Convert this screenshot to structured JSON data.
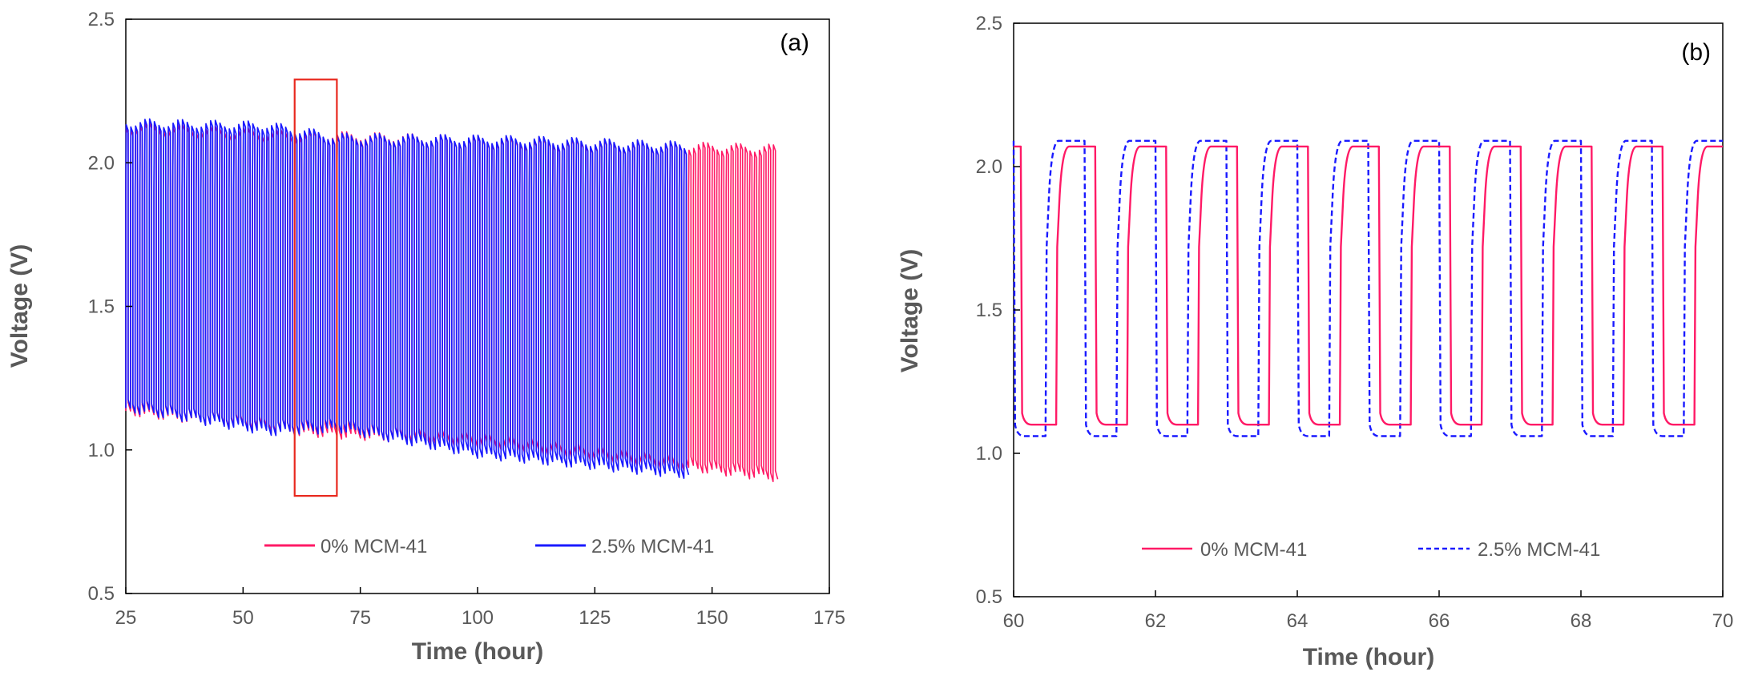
{
  "colors": {
    "pink": "#ff1a66",
    "blue": "#1a1aff",
    "blue_light": "#3b6cff",
    "highlight": "#e8281e",
    "axis": "#000000",
    "text": "#595959"
  },
  "chart_data": [
    {
      "type": "line",
      "panel_label": "(a)",
      "xlabel": "Time (hour)",
      "ylabel": "Voltage (V)",
      "xlim": [
        25,
        175
      ],
      "ylim": [
        0.5,
        2.5
      ],
      "xticks": [
        "25",
        "50",
        "75",
        "100",
        "125",
        "150",
        "175"
      ],
      "yticks": [
        "0.5",
        "1.0",
        "1.5",
        "2.0",
        "2.5"
      ],
      "grid": false,
      "legend_position": "bottom-center",
      "series": [
        {
          "name": "0% MCM-41",
          "style": "solid",
          "color": "#ff1a66",
          "cycle_period_hours": 1.0,
          "time_range": [
            25,
            163.5
          ],
          "charge_top_V": [
            [
              25,
              2.13
            ],
            [
              60,
              2.1
            ],
            [
              100,
              2.08
            ],
            [
              163,
              2.05
            ]
          ],
          "discharge_bottom_V": [
            [
              25,
              1.13
            ],
            [
              60,
              1.06
            ],
            [
              100,
              1.02
            ],
            [
              163,
              0.9
            ]
          ]
        },
        {
          "name": "2.5% MCM-41",
          "style": "solid",
          "color": "#1a1aff",
          "cycle_period_hours": 1.0,
          "time_range": [
            25,
            144
          ],
          "charge_top_V": [
            [
              25,
              2.14
            ],
            [
              55,
              2.13
            ],
            [
              70,
              2.09
            ],
            [
              110,
              2.08
            ],
            [
              144,
              2.06
            ]
          ],
          "discharge_bottom_V": [
            [
              25,
              1.14
            ],
            [
              55,
              1.06
            ],
            [
              70,
              1.07
            ],
            [
              100,
              0.98
            ],
            [
              144,
              0.91
            ]
          ]
        }
      ],
      "annotations": [
        {
          "type": "rectangle",
          "x_range": [
            61,
            70
          ],
          "y_range": [
            0.84,
            2.29
          ],
          "color": "#e8281e"
        }
      ]
    },
    {
      "type": "line",
      "panel_label": "(b)",
      "xlabel": "Time (hour)",
      "ylabel": "Voltage (V)",
      "xlim": [
        60,
        70
      ],
      "ylim": [
        0.5,
        2.5
      ],
      "xticks": [
        "60",
        "62",
        "64",
        "66",
        "68",
        "70"
      ],
      "yticks": [
        "0.5",
        "1.0",
        "1.5",
        "2.0",
        "2.5"
      ],
      "grid": false,
      "legend_position": "bottom-center",
      "series": [
        {
          "name": "0% MCM-41",
          "style": "solid",
          "color": "#ff1a66",
          "period_hours": 1.0,
          "charge_end_V": 2.07,
          "discharge_end_V": 1.1,
          "discharge_start_times": [
            60.1,
            61.15,
            62.15,
            63.15,
            64.15,
            65.15,
            66.15,
            67.15,
            68.15,
            69.15
          ],
          "charge_start_times": [
            60.6,
            61.6,
            62.6,
            63.6,
            64.6,
            65.6,
            66.6,
            67.6,
            68.6,
            69.6
          ]
        },
        {
          "name": "2.5% MCM-41",
          "style": "dashed",
          "color": "#1a1aff",
          "period_hours": 1.0,
          "charge_end_V": 2.09,
          "discharge_end_V": 1.06,
          "discharge_start_times": [
            60.0,
            61.0,
            62.0,
            63.0,
            64.0,
            65.0,
            66.0,
            67.0,
            68.0,
            69.0
          ],
          "charge_start_times": [
            60.45,
            61.45,
            62.45,
            63.45,
            64.45,
            65.45,
            66.45,
            67.45,
            68.45,
            69.45
          ]
        }
      ]
    }
  ]
}
